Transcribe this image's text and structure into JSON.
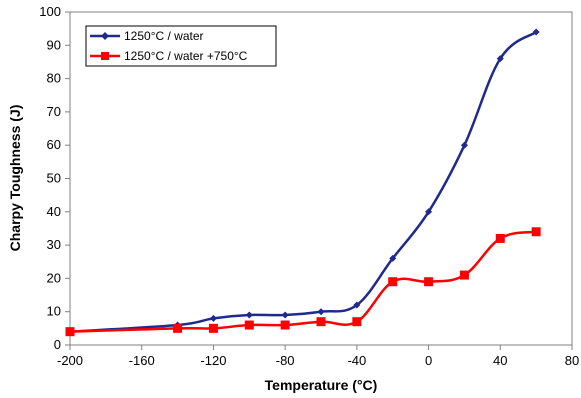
{
  "chart_data": {
    "type": "line",
    "title": "",
    "xlabel": "Temperature (°C)",
    "ylabel": "Charpy Toughness (J)",
    "xlim": [
      -200,
      80
    ],
    "ylim": [
      0,
      100
    ],
    "x_ticks": [
      -200,
      -160,
      -120,
      -80,
      -40,
      0,
      40,
      80
    ],
    "y_ticks": [
      0,
      10,
      20,
      30,
      40,
      50,
      60,
      70,
      80,
      90,
      100
    ],
    "x_tick_labels": [
      "-200",
      "-160",
      "-120",
      "-80",
      "-40",
      "0",
      "40",
      "80"
    ],
    "y_tick_labels": [
      "0",
      "10",
      "20",
      "30",
      "40",
      "50",
      "60",
      "70",
      "80",
      "90",
      "100"
    ],
    "grid": false,
    "legend_position": "top-left",
    "series": [
      {
        "name": "1250°C / water",
        "color": "#1f2a8c",
        "marker": "diamond",
        "x": [
          -200,
          -140,
          -120,
          -100,
          -80,
          -60,
          -40,
          -20,
          0,
          20,
          40,
          60
        ],
        "y": [
          4,
          6,
          8,
          9,
          9,
          10,
          12,
          26,
          40,
          60,
          86,
          94
        ]
      },
      {
        "name": "1250°C / water +750°C",
        "color": "#ff0000",
        "marker": "square",
        "x": [
          -200,
          -140,
          -120,
          -100,
          -80,
          -60,
          -40,
          -20,
          0,
          20,
          40,
          60
        ],
        "y": [
          4,
          5,
          5,
          6,
          6,
          7,
          7,
          19,
          19,
          21,
          32,
          34
        ]
      }
    ]
  }
}
